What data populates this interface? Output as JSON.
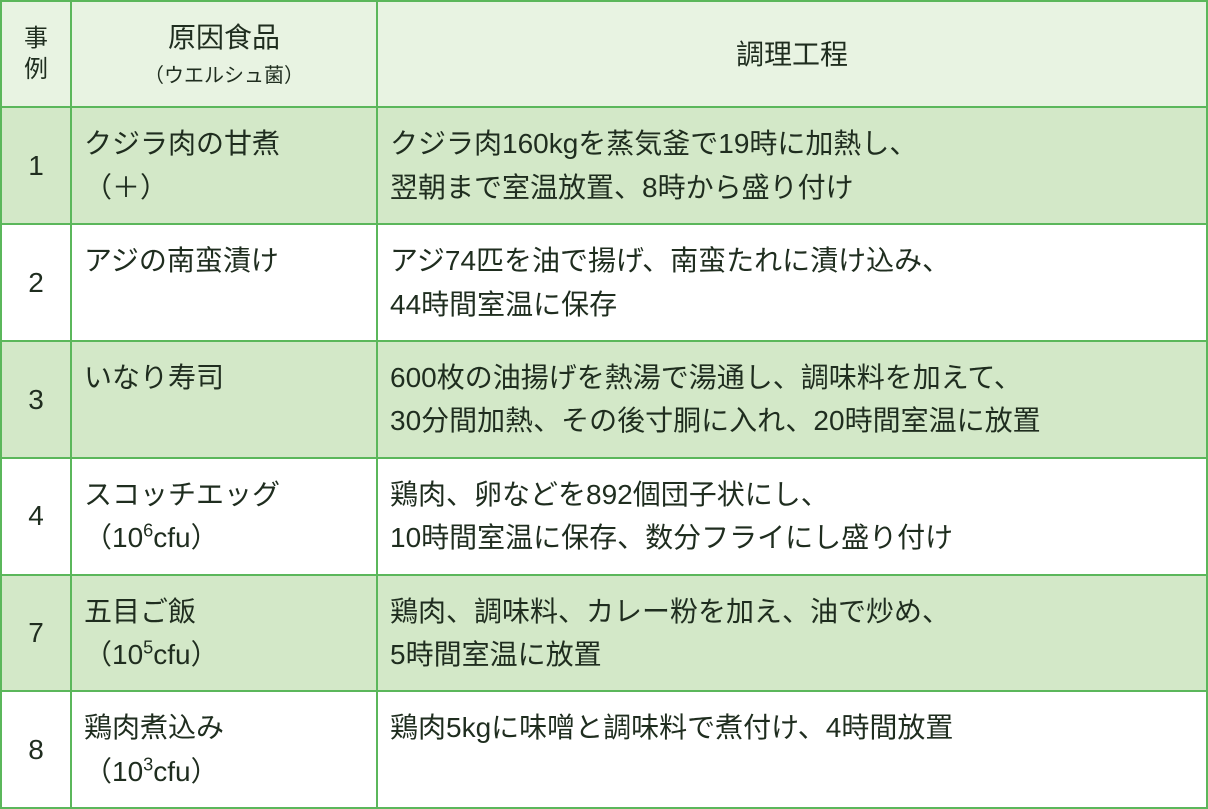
{
  "table": {
    "border_color": "#5bb75b",
    "header_bg": "#e8f3e2",
    "row_odd_bg": "#d3e8c8",
    "row_even_bg": "#ffffff",
    "text_color": "#1f2d1f",
    "base_fontsize": 28,
    "sub_fontsize": 20,
    "columns": {
      "case": "事例",
      "food_main": "原因食品",
      "food_sub": "（ウエルシュ菌）",
      "process": "調理工程"
    },
    "rows": [
      {
        "case": "1",
        "food_line1": "クジラ肉の甘煮",
        "food_line2": "（＋）",
        "process_line1": "クジラ肉160kgを蒸気釜で19時に加熱し、",
        "process_line2": "翌朝まで室温放置、8時から盛り付け"
      },
      {
        "case": "2",
        "food_line1": "アジの南蛮漬け",
        "food_line2": "",
        "process_line1": "アジ74匹を油で揚げ、南蛮たれに漬け込み、",
        "process_line2": "44時間室温に保存"
      },
      {
        "case": "3",
        "food_line1": "いなり寿司",
        "food_line2": "",
        "process_line1": "600枚の油揚げを熱湯で湯通し、調味料を加えて、",
        "process_line2": "30分間加熱、その後寸胴に入れ、20時間室温に放置"
      },
      {
        "case": "4",
        "food_line1": "スコッチエッグ",
        "food_cfu_prefix": "（10",
        "food_cfu_exp": "6",
        "food_cfu_suffix": "cfu）",
        "process_line1": "鶏肉、卵などを892個団子状にし、",
        "process_line2": "10時間室温に保存、数分フライにし盛り付け"
      },
      {
        "case": "7",
        "food_line1": "五目ご飯",
        "food_cfu_prefix": "（10",
        "food_cfu_exp": "5",
        "food_cfu_suffix": "cfu）",
        "process_line1": "鶏肉、調味料、カレー粉を加え、油で炒め、",
        "process_line2": "5時間室温に放置"
      },
      {
        "case": "8",
        "food_line1": "鶏肉煮込み",
        "food_cfu_prefix": "（10",
        "food_cfu_exp": "3",
        "food_cfu_suffix": "cfu）",
        "process_line1": "鶏肉5kgに味噌と調味料で煮付け、4時間放置",
        "process_line2": ""
      }
    ]
  }
}
